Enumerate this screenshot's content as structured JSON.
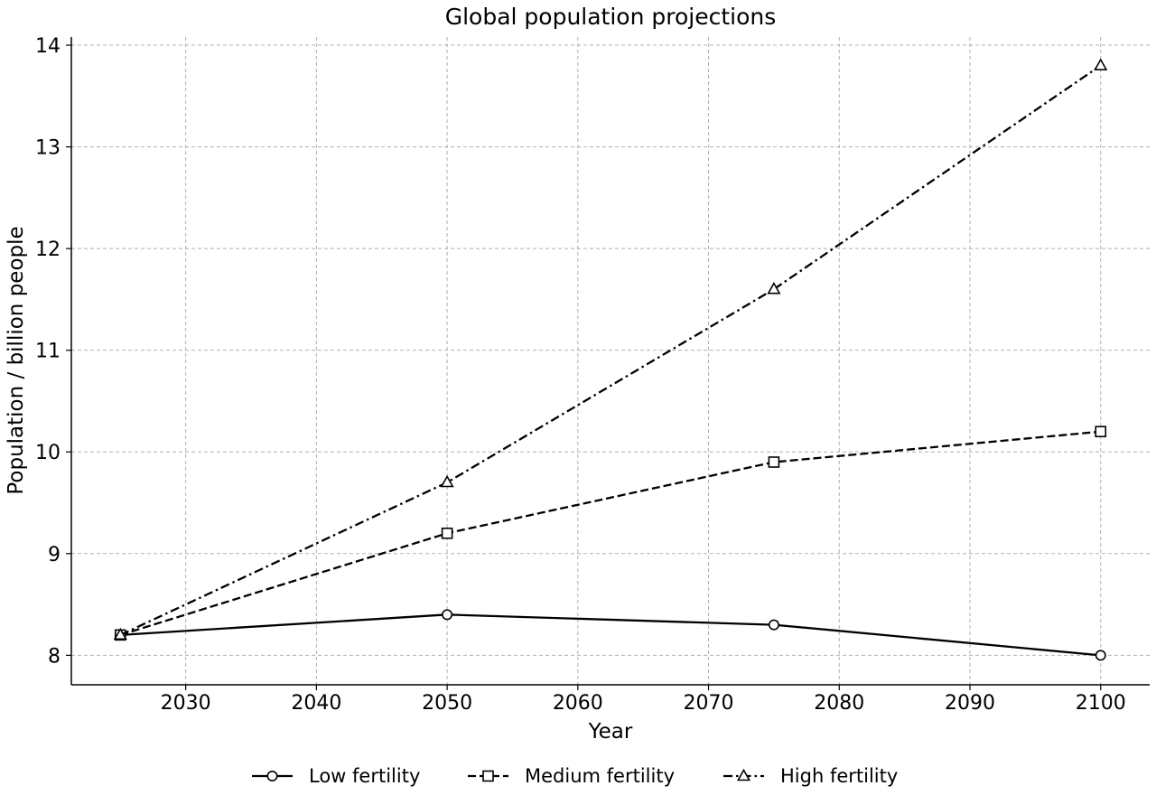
{
  "chart_data": {
    "type": "line",
    "title": "Global population projections",
    "xlabel": "Year",
    "ylabel": "Population / billion people",
    "x": [
      2025,
      2050,
      2075,
      2100
    ],
    "xlim": [
      2021.25,
      2103.75
    ],
    "ylim": [
      7.71,
      14.08
    ],
    "xticks": [
      2030,
      2040,
      2050,
      2060,
      2070,
      2080,
      2090,
      2100
    ],
    "yticks": [
      8,
      9,
      10,
      11,
      12,
      13,
      14
    ],
    "grid": true,
    "legend_position": "bottom-center",
    "series": [
      {
        "name": "Low fertility",
        "values": [
          8.2,
          8.4,
          8.3,
          8.0
        ],
        "marker": "circle",
        "line_style": "solid",
        "color": "#000000"
      },
      {
        "name": "Medium fertility",
        "values": [
          8.2,
          9.2,
          9.9,
          10.2
        ],
        "marker": "square",
        "line_style": "dashed",
        "color": "#000000"
      },
      {
        "name": "High fertility",
        "values": [
          8.2,
          9.7,
          11.6,
          13.8
        ],
        "marker": "triangle",
        "line_style": "dash-dot",
        "color": "#000000"
      }
    ]
  }
}
